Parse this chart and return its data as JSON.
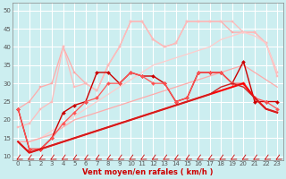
{
  "xlabel": "Vent moyen/en rafales ( km/h )",
  "xlim": [
    -0.5,
    23.5
  ],
  "ylim": [
    9,
    52
  ],
  "yticks": [
    10,
    15,
    20,
    25,
    30,
    35,
    40,
    45,
    50
  ],
  "xticks": [
    0,
    1,
    2,
    3,
    4,
    5,
    6,
    7,
    8,
    9,
    10,
    11,
    12,
    13,
    14,
    15,
    16,
    17,
    18,
    19,
    20,
    21,
    22,
    23
  ],
  "bg_color": "#cceef0",
  "grid_color": "#ffffff",
  "lines": [
    {
      "x": [
        0,
        1,
        2,
        3,
        4,
        5,
        6,
        7,
        8,
        9,
        10,
        11,
        12,
        13,
        14,
        15,
        16,
        17,
        18,
        19,
        20,
        21,
        22,
        23
      ],
      "y": [
        23,
        25,
        29,
        30,
        40,
        33,
        30,
        28,
        35,
        40,
        47,
        47,
        42,
        40,
        41,
        47,
        47,
        47,
        47,
        44,
        44,
        44,
        41,
        33
      ],
      "color": "#ffaaaa",
      "marker": "s",
      "markersize": 2.0,
      "linewidth": 0.9
    },
    {
      "x": [
        0,
        1,
        2,
        3,
        4,
        5,
        6,
        7,
        8,
        9,
        10,
        11,
        12,
        13,
        14,
        15,
        16,
        17,
        18,
        19,
        20,
        21,
        22,
        23
      ],
      "y": [
        18,
        19,
        23,
        25,
        40,
        29,
        30,
        28,
        35,
        40,
        47,
        47,
        42,
        40,
        41,
        47,
        47,
        47,
        47,
        47,
        44,
        44,
        41,
        32
      ],
      "color": "#ffbbbb",
      "marker": "s",
      "markersize": 2.0,
      "linewidth": 0.9
    },
    {
      "x": [
        0,
        1,
        2,
        3,
        4,
        5,
        6,
        7,
        8,
        9,
        10,
        11,
        12,
        13,
        14,
        15,
        16,
        17,
        18,
        19,
        20,
        21,
        22,
        23
      ],
      "y": [
        14,
        14,
        15,
        17,
        19,
        21,
        23,
        25,
        27,
        29,
        31,
        33,
        35,
        36,
        37,
        38,
        39,
        40,
        42,
        43,
        44,
        43,
        41,
        33
      ],
      "color": "#ffcccc",
      "marker": null,
      "markersize": 0,
      "linewidth": 0.9
    },
    {
      "x": [
        0,
        1,
        2,
        3,
        4,
        5,
        6,
        7,
        8,
        9,
        10,
        11,
        12,
        13,
        14,
        15,
        16,
        17,
        18,
        19,
        20,
        21,
        22,
        23
      ],
      "y": [
        14,
        14,
        15,
        16,
        18,
        20,
        21,
        22,
        23,
        24,
        25,
        26,
        27,
        28,
        29,
        30,
        31,
        32,
        33,
        34,
        35,
        33,
        31,
        29
      ],
      "color": "#ffaaaa",
      "marker": null,
      "markersize": 0,
      "linewidth": 0.9
    },
    {
      "x": [
        0,
        1,
        2,
        3,
        4,
        5,
        6,
        7,
        8,
        9,
        10,
        11,
        12,
        13,
        14,
        15,
        16,
        17,
        18,
        19,
        20,
        21,
        22,
        23
      ],
      "y": [
        23,
        12,
        12,
        15,
        22,
        24,
        25,
        33,
        33,
        30,
        33,
        32,
        32,
        30,
        25,
        26,
        33,
        33,
        33,
        30,
        36,
        25,
        25,
        25
      ],
      "color": "#cc0000",
      "marker": "D",
      "markersize": 2.0,
      "linewidth": 1.0
    },
    {
      "x": [
        0,
        1,
        2,
        3,
        4,
        5,
        6,
        7,
        8,
        9,
        10,
        11,
        12,
        13,
        14,
        15,
        16,
        17,
        18,
        19,
        20,
        21,
        22,
        23
      ],
      "y": [
        23,
        12,
        12,
        15,
        19,
        22,
        25,
        26,
        30,
        30,
        33,
        32,
        30,
        30,
        25,
        26,
        33,
        33,
        33,
        30,
        30,
        26,
        25,
        23
      ],
      "color": "#ff5555",
      "marker": "D",
      "markersize": 2.0,
      "linewidth": 0.9
    },
    {
      "x": [
        0,
        1,
        2,
        3,
        4,
        5,
        6,
        7,
        8,
        9,
        10,
        11,
        12,
        13,
        14,
        15,
        16,
        17,
        18,
        19,
        20,
        21,
        22,
        23
      ],
      "y": [
        14,
        11,
        12,
        13,
        14,
        15,
        16,
        17,
        18,
        19,
        20,
        21,
        22,
        23,
        24,
        25,
        26,
        27,
        28,
        29,
        30,
        26,
        23,
        22
      ],
      "color": "#ff0000",
      "marker": null,
      "markersize": 0,
      "linewidth": 1.5
    },
    {
      "x": [
        0,
        1,
        2,
        3,
        4,
        5,
        6,
        7,
        8,
        9,
        10,
        11,
        12,
        13,
        14,
        15,
        16,
        17,
        18,
        19,
        20,
        21,
        22,
        23
      ],
      "y": [
        14,
        11,
        12,
        13,
        14,
        15,
        16,
        17,
        18,
        19,
        20,
        21,
        22,
        23,
        24,
        25,
        26,
        27,
        29,
        30,
        29,
        26,
        23,
        22
      ],
      "color": "#cc2222",
      "marker": null,
      "markersize": 0,
      "linewidth": 1.0
    }
  ],
  "arrow_color": "#cc0000",
  "tick_color": "#555555",
  "label_color": "#cc0000"
}
